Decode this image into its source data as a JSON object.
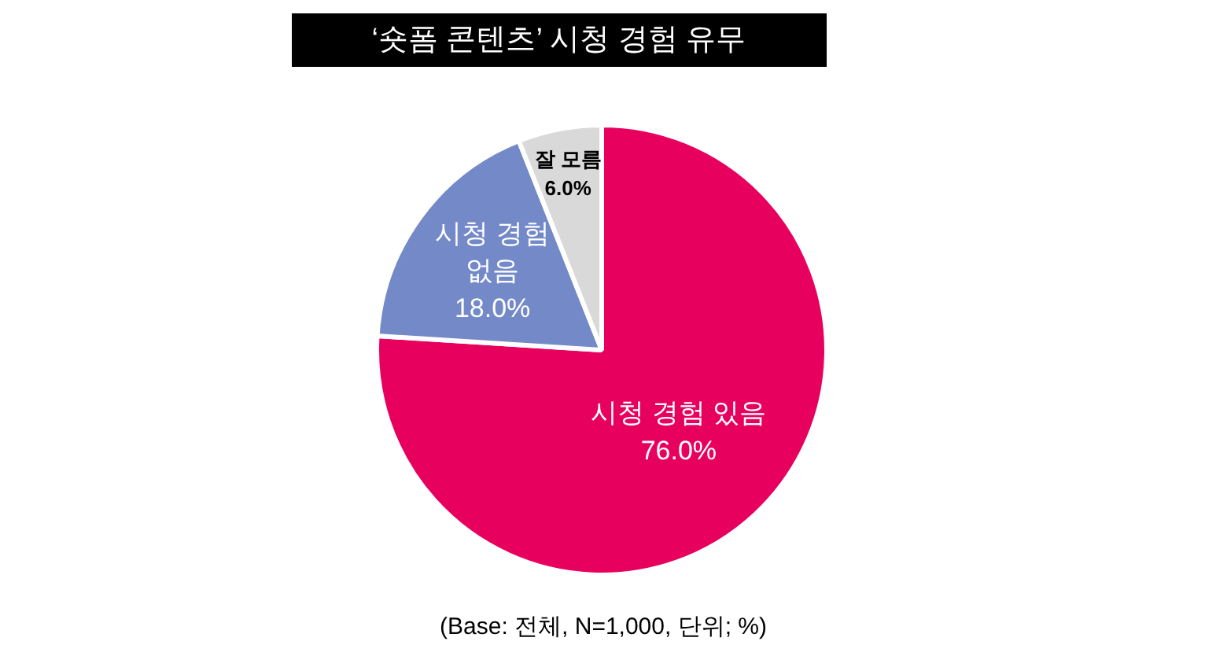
{
  "chart_data": {
    "type": "pie",
    "title": "‘숏폼 콘텐츠’ 시청 경험 유무",
    "categories": [
      "시청 경험 있음",
      "시청 경험\n없음",
      "잘 모름"
    ],
    "values": [
      76.0,
      18.0,
      6.0
    ],
    "value_labels": [
      "76.0%",
      "18.0%",
      "6.0%"
    ],
    "colors": [
      "#e8005f",
      "#7489c8",
      "#d9d9d9"
    ],
    "annotations": [
      "(Base: 전체, N=1,000, 단위; %)"
    ],
    "legend": false
  }
}
